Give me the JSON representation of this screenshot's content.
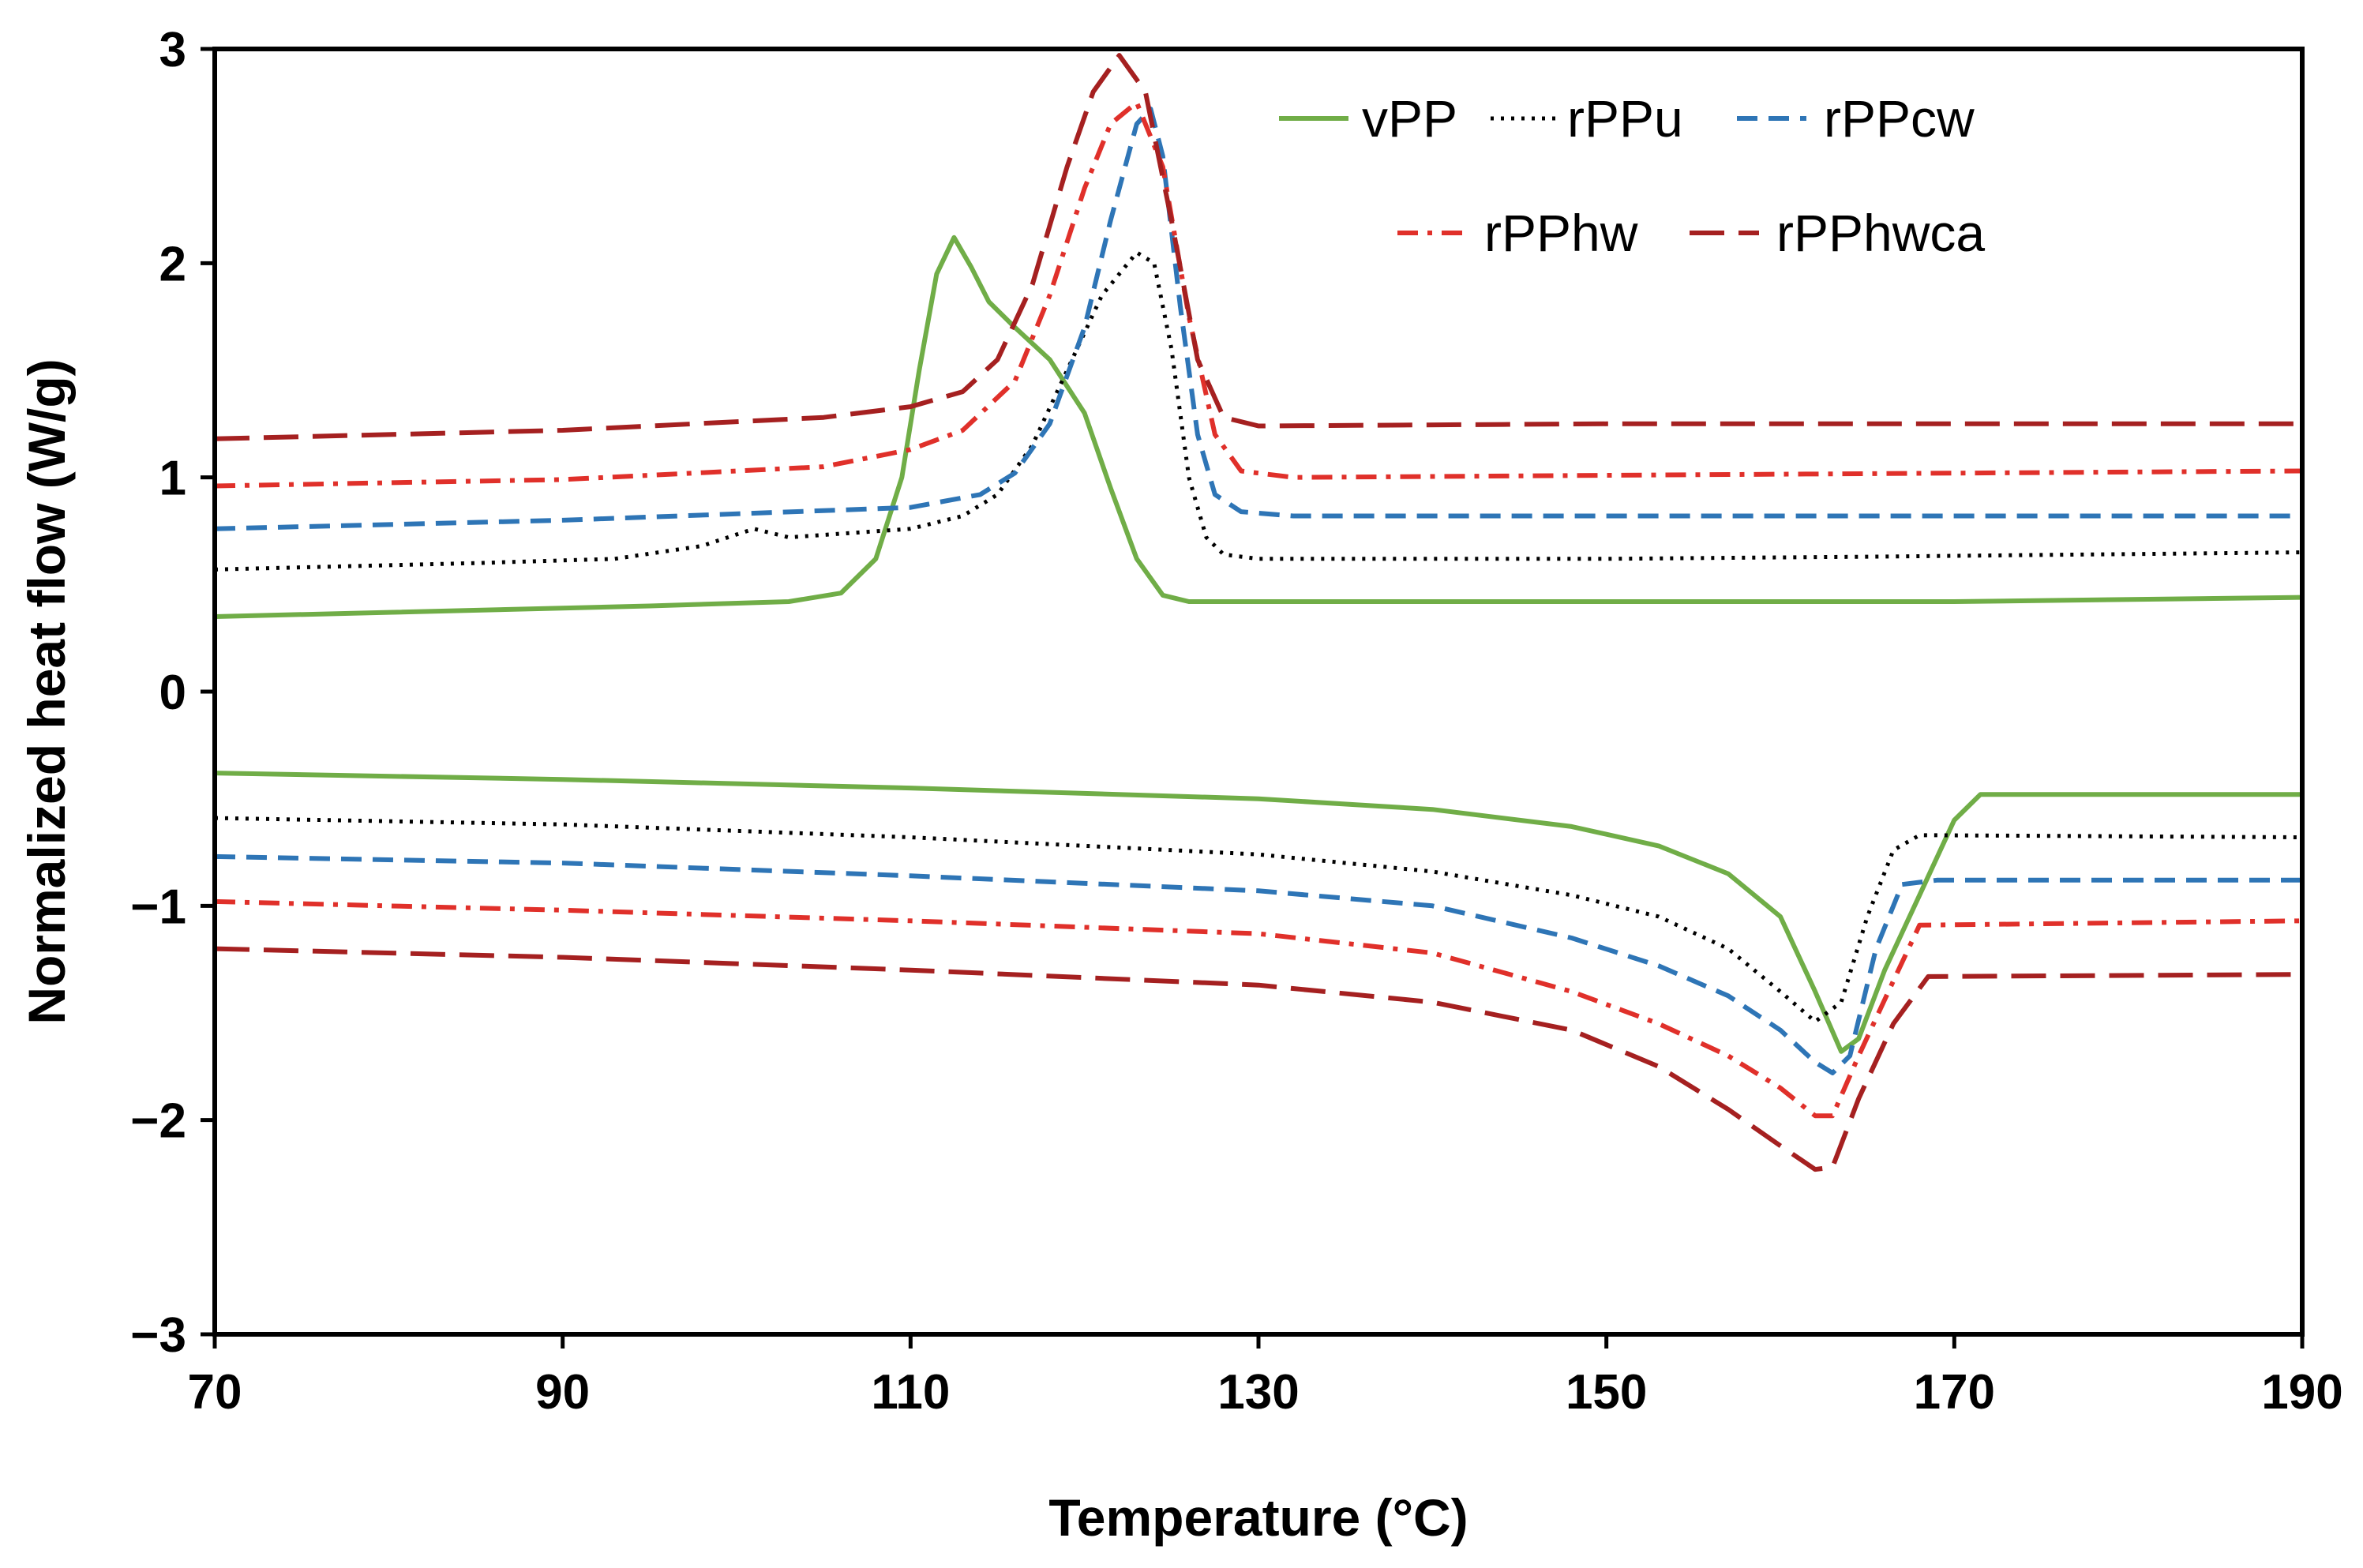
{
  "chart_data": {
    "type": "line",
    "title": "",
    "xlabel": "Temperature (°C)",
    "ylabel": "Normalized heat flow (W/g)",
    "xlim": [
      70,
      190
    ],
    "ylim": [
      -3,
      3
    ],
    "xticks": [
      70,
      90,
      110,
      130,
      150,
      170,
      190
    ],
    "yticks": [
      -3,
      -2,
      -1,
      0,
      1,
      2,
      3
    ],
    "xtick_labels": [
      "70",
      "90",
      "110",
      "130",
      "150",
      "170",
      "190"
    ],
    "ytick_labels": [
      "−3",
      "−2",
      "−1",
      "0",
      "1",
      "2",
      "3"
    ],
    "grid": false,
    "legend_position": "top-right",
    "series": [
      {
        "name": "vPP",
        "color": "#70AD47",
        "dash": "solid",
        "cooling": [
          [
            70,
            0.35
          ],
          [
            80,
            0.37
          ],
          [
            95,
            0.4
          ],
          [
            103,
            0.42
          ],
          [
            106,
            0.46
          ],
          [
            108,
            0.62
          ],
          [
            109.5,
            1.0
          ],
          [
            110.5,
            1.5
          ],
          [
            111.5,
            1.95
          ],
          [
            112.5,
            2.12
          ],
          [
            113.5,
            1.98
          ],
          [
            114.5,
            1.82
          ],
          [
            116,
            1.7
          ],
          [
            118,
            1.55
          ],
          [
            120,
            1.3
          ],
          [
            121.5,
            0.95
          ],
          [
            123,
            0.62
          ],
          [
            124.5,
            0.45
          ],
          [
            126,
            0.42
          ],
          [
            140,
            0.42
          ],
          [
            170,
            0.42
          ],
          [
            190,
            0.44
          ]
        ],
        "heating": [
          [
            70,
            -0.38
          ],
          [
            90,
            -0.41
          ],
          [
            110,
            -0.45
          ],
          [
            130,
            -0.5
          ],
          [
            140,
            -0.55
          ],
          [
            148,
            -0.63
          ],
          [
            153,
            -0.72
          ],
          [
            157,
            -0.85
          ],
          [
            160,
            -1.05
          ],
          [
            162,
            -1.4
          ],
          [
            163.5,
            -1.68
          ],
          [
            164.5,
            -1.62
          ],
          [
            166,
            -1.3
          ],
          [
            168,
            -0.95
          ],
          [
            170,
            -0.6
          ],
          [
            171.5,
            -0.48
          ],
          [
            190,
            -0.48
          ]
        ]
      },
      {
        "name": "rPPu",
        "color": "#000000",
        "dash": "dotted",
        "cooling": [
          [
            70,
            0.57
          ],
          [
            85,
            0.6
          ],
          [
            93,
            0.62
          ],
          [
            98,
            0.68
          ],
          [
            101,
            0.76
          ],
          [
            103,
            0.72
          ],
          [
            110,
            0.76
          ],
          [
            113,
            0.82
          ],
          [
            115,
            0.92
          ],
          [
            117,
            1.15
          ],
          [
            119,
            1.5
          ],
          [
            121,
            1.85
          ],
          [
            123,
            2.05
          ],
          [
            124,
            2.0
          ],
          [
            125,
            1.6
          ],
          [
            126,
            1.0
          ],
          [
            127,
            0.72
          ],
          [
            128,
            0.64
          ],
          [
            130,
            0.62
          ],
          [
            150,
            0.62
          ],
          [
            165,
            0.63
          ],
          [
            190,
            0.65
          ]
        ],
        "heating": [
          [
            70,
            -0.59
          ],
          [
            90,
            -0.62
          ],
          [
            110,
            -0.68
          ],
          [
            130,
            -0.76
          ],
          [
            140,
            -0.84
          ],
          [
            148,
            -0.95
          ],
          [
            153,
            -1.05
          ],
          [
            157,
            -1.2
          ],
          [
            160,
            -1.4
          ],
          [
            162,
            -1.54
          ],
          [
            163.5,
            -1.45
          ],
          [
            165,
            -1.05
          ],
          [
            166.5,
            -0.74
          ],
          [
            168,
            -0.67
          ],
          [
            190,
            -0.68
          ]
        ]
      },
      {
        "name": "rPPcw",
        "color": "#2E75B6",
        "dash": "dashed",
        "cooling": [
          [
            70,
            0.76
          ],
          [
            90,
            0.8
          ],
          [
            110,
            0.86
          ],
          [
            114,
            0.92
          ],
          [
            116,
            1.02
          ],
          [
            118,
            1.25
          ],
          [
            120,
            1.7
          ],
          [
            121.5,
            2.2
          ],
          [
            123,
            2.65
          ],
          [
            123.8,
            2.72
          ],
          [
            124.5,
            2.5
          ],
          [
            125.5,
            1.8
          ],
          [
            126.5,
            1.2
          ],
          [
            127.5,
            0.92
          ],
          [
            129,
            0.84
          ],
          [
            132,
            0.82
          ],
          [
            150,
            0.82
          ],
          [
            190,
            0.82
          ]
        ],
        "heating": [
          [
            70,
            -0.77
          ],
          [
            90,
            -0.8
          ],
          [
            110,
            -0.86
          ],
          [
            130,
            -0.93
          ],
          [
            140,
            -1.0
          ],
          [
            148,
            -1.15
          ],
          [
            153,
            -1.28
          ],
          [
            157,
            -1.42
          ],
          [
            160,
            -1.58
          ],
          [
            162,
            -1.73
          ],
          [
            163,
            -1.78
          ],
          [
            164,
            -1.7
          ],
          [
            165.5,
            -1.2
          ],
          [
            167,
            -0.9
          ],
          [
            169,
            -0.88
          ],
          [
            190,
            -0.88
          ]
        ]
      },
      {
        "name": "rPPhw",
        "color": "#E0302A",
        "dash": "dashdot",
        "cooling": [
          [
            70,
            0.96
          ],
          [
            90,
            0.99
          ],
          [
            105,
            1.05
          ],
          [
            110,
            1.13
          ],
          [
            113,
            1.22
          ],
          [
            116,
            1.45
          ],
          [
            118,
            1.85
          ],
          [
            120,
            2.35
          ],
          [
            121.5,
            2.65
          ],
          [
            123,
            2.75
          ],
          [
            124.5,
            2.45
          ],
          [
            126,
            1.75
          ],
          [
            127.5,
            1.2
          ],
          [
            129,
            1.03
          ],
          [
            132,
            1.0
          ],
          [
            150,
            1.01
          ],
          [
            190,
            1.03
          ]
        ],
        "heating": [
          [
            70,
            -0.98
          ],
          [
            90,
            -1.02
          ],
          [
            110,
            -1.07
          ],
          [
            130,
            -1.13
          ],
          [
            140,
            -1.22
          ],
          [
            148,
            -1.4
          ],
          [
            153,
            -1.55
          ],
          [
            157,
            -1.7
          ],
          [
            160,
            -1.85
          ],
          [
            162,
            -1.98
          ],
          [
            163,
            -1.98
          ],
          [
            164.5,
            -1.7
          ],
          [
            166.5,
            -1.35
          ],
          [
            168,
            -1.09
          ],
          [
            190,
            -1.07
          ]
        ]
      },
      {
        "name": "rPPhwca",
        "color": "#A52020",
        "dash": "longdash",
        "cooling": [
          [
            70,
            1.18
          ],
          [
            90,
            1.22
          ],
          [
            105,
            1.28
          ],
          [
            110,
            1.33
          ],
          [
            113,
            1.4
          ],
          [
            115,
            1.55
          ],
          [
            117,
            1.9
          ],
          [
            119,
            2.45
          ],
          [
            120.5,
            2.8
          ],
          [
            122,
            2.97
          ],
          [
            123.5,
            2.8
          ],
          [
            125,
            2.2
          ],
          [
            126.5,
            1.55
          ],
          [
            128,
            1.28
          ],
          [
            130,
            1.24
          ],
          [
            150,
            1.25
          ],
          [
            190,
            1.25
          ]
        ],
        "heating": [
          [
            70,
            -1.2
          ],
          [
            90,
            -1.24
          ],
          [
            110,
            -1.3
          ],
          [
            130,
            -1.37
          ],
          [
            140,
            -1.45
          ],
          [
            148,
            -1.58
          ],
          [
            153,
            -1.75
          ],
          [
            157,
            -1.95
          ],
          [
            160,
            -2.12
          ],
          [
            162,
            -2.23
          ],
          [
            163,
            -2.22
          ],
          [
            164.5,
            -1.9
          ],
          [
            166.5,
            -1.55
          ],
          [
            168.5,
            -1.33
          ],
          [
            190,
            -1.32
          ]
        ]
      }
    ]
  }
}
